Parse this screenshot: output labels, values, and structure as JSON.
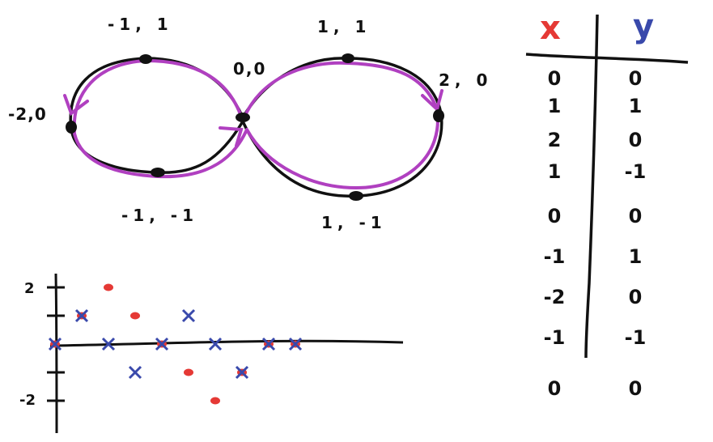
{
  "figure_eight": {
    "point_labels": [
      "-1, 1",
      "1, 1",
      "0,0",
      "2, 0",
      "-2,0",
      "-1, -1",
      "1, -1"
    ],
    "colors": {
      "curve": "#111111",
      "arrow_path": "#b040c0",
      "dots": "#111111"
    }
  },
  "table": {
    "headers": {
      "x": "x",
      "y": "y"
    },
    "header_colors": {
      "x": "#e53935",
      "y": "#3949ab"
    },
    "rows": [
      {
        "x": "0",
        "y": "0"
      },
      {
        "x": "1",
        "y": "1"
      },
      {
        "x": "2",
        "y": "0"
      },
      {
        "x": "1",
        "y": "-1"
      },
      {
        "x": "0",
        "y": "0"
      },
      {
        "x": "-1",
        "y": "1"
      },
      {
        "x": "-2",
        "y": "0"
      },
      {
        "x": "-1",
        "y": "-1"
      },
      {
        "x": "0",
        "y": "0"
      }
    ]
  },
  "mini_plot": {
    "y_tick_labels": [
      "2",
      "-2"
    ],
    "colors": {
      "x_series": "#e53935",
      "y_series": "#3949ab",
      "axis": "#111111"
    }
  },
  "chart_data": {
    "type": "scatter",
    "ylim": [
      -2,
      2
    ],
    "series": [
      {
        "color": "#e53935",
        "marker": "dot",
        "x": [
          0,
          1,
          2,
          3,
          4,
          5,
          6,
          7,
          8,
          9
        ],
        "values": [
          0,
          1,
          2,
          1,
          0,
          -1,
          -2,
          -1,
          0,
          0
        ]
      },
      {
        "color": "#3949ab",
        "marker": "cross",
        "x": [
          0,
          1,
          2,
          3,
          4,
          5,
          6,
          7,
          8,
          9
        ],
        "values": [
          0,
          1,
          0,
          -1,
          0,
          1,
          0,
          -1,
          0,
          0
        ]
      }
    ]
  }
}
